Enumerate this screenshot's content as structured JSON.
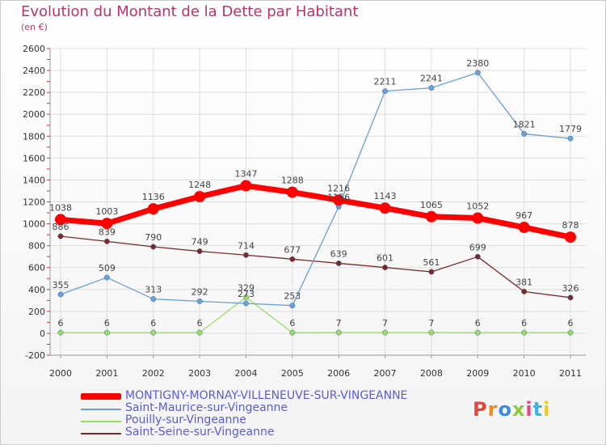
{
  "title": "Evolution du Montant de la Dette par Habitant",
  "unit": "(en €)",
  "logo": "Proxiti",
  "colors": {
    "title": "#c0306a",
    "legend_text": "#5a5ae6",
    "axis": "#999999",
    "tick": "#cc3333"
  },
  "chart_data": {
    "type": "line",
    "title": "Evolution du Montant de la Dette par Habitant",
    "subtitle": "(en €)",
    "xlabel": "",
    "ylabel": "",
    "x": [
      "2000",
      "2001",
      "2002",
      "2003",
      "2004",
      "2005",
      "2006",
      "2007",
      "2008",
      "2009",
      "2010",
      "2011"
    ],
    "ylim": [
      -200,
      2600
    ],
    "yticks": [
      -200,
      0,
      200,
      400,
      600,
      800,
      1000,
      1200,
      1400,
      1600,
      1800,
      2000,
      2200,
      2400,
      2600
    ],
    "grid": true,
    "legend_position": "bottom",
    "series": [
      {
        "name": "MONTIGNY-MORNAY-VILLENEUVE-SUR-VINGEANNE",
        "color": "#ff0000",
        "line_width": 7,
        "marker_radius": 7,
        "values": [
          1038,
          1003,
          1136,
          1248,
          1347,
          1288,
          1216,
          1143,
          1065,
          1052,
          967,
          878
        ]
      },
      {
        "name": "Saint-Maurice-sur-Vingeanne",
        "color": "#6aa0d8",
        "line_width": 1.3,
        "marker_radius": 3.2,
        "values": [
          355,
          509,
          313,
          292,
          273,
          253,
          1156,
          2211,
          2241,
          2380,
          1821,
          1779
        ]
      },
      {
        "name": "Pouilly-sur-Vingeanne",
        "color": "#99dd66",
        "line_width": 1.3,
        "marker_radius": 3.2,
        "values": [
          6,
          6,
          6,
          6,
          329,
          6,
          7,
          7,
          7,
          6,
          6,
          6
        ]
      },
      {
        "name": "Saint-Seine-sur-Vingeanne",
        "color": "#7a2a2a",
        "line_width": 1.3,
        "marker_radius": 3.2,
        "values": [
          886,
          839,
          790,
          749,
          714,
          677,
          639,
          601,
          561,
          699,
          381,
          326
        ]
      }
    ]
  }
}
